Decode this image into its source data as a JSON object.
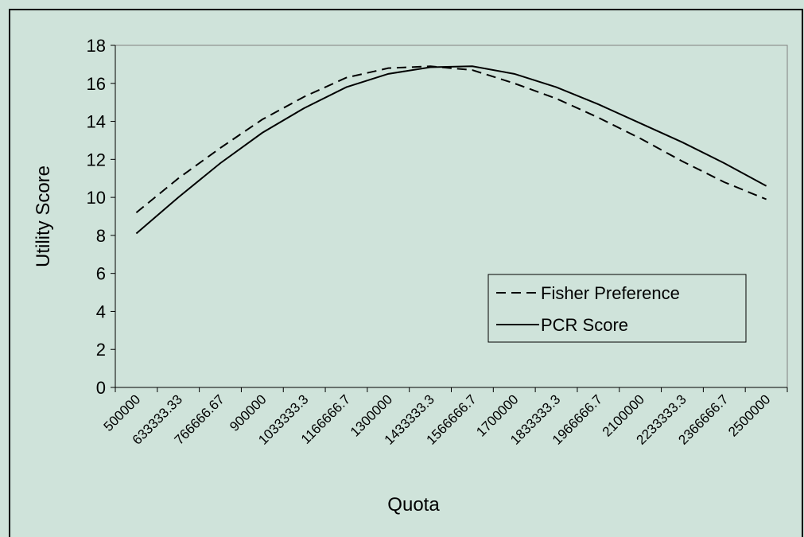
{
  "chart_data": {
    "type": "line",
    "x_label": "Quota",
    "y_label": "Utility Score",
    "categories": [
      "500000",
      "633333.33",
      "766666.67",
      "900000",
      "1033333.3",
      "1166666.7",
      "1300000",
      "1433333.3",
      "1566666.7",
      "1700000",
      "1833333.3",
      "1966666.7",
      "2100000",
      "2233333.3",
      "2366666.7",
      "2500000"
    ],
    "series": [
      {
        "name": "Fisher Preference",
        "color": "#000000",
        "dash": true,
        "values": [
          9.2,
          11.0,
          12.6,
          14.1,
          15.3,
          16.3,
          16.8,
          16.9,
          16.7,
          16.0,
          15.2,
          14.2,
          13.1,
          11.9,
          10.8,
          9.9
        ]
      },
      {
        "name": "PCR Score",
        "color": "#000000",
        "dash": false,
        "values": [
          8.1,
          10.0,
          11.8,
          13.4,
          14.7,
          15.8,
          16.5,
          16.85,
          16.9,
          16.5,
          15.8,
          14.9,
          13.9,
          12.9,
          11.8,
          10.6
        ]
      }
    ],
    "ylim": [
      0,
      18
    ],
    "yticks": [
      0,
      2,
      4,
      6,
      8,
      10,
      12,
      14,
      16,
      18
    ],
    "grid": false,
    "legend": "lower right"
  }
}
